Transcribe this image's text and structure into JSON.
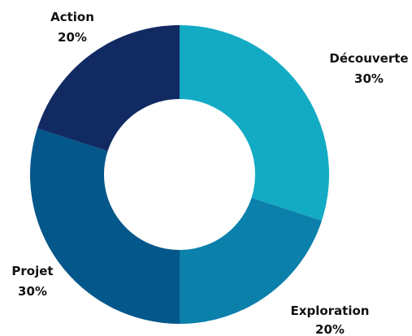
{
  "chart_data": {
    "type": "pie",
    "variant": "donut",
    "title": "",
    "legend": "none",
    "slices": [
      {
        "label": "Découverte",
        "value": 30,
        "value_label": "30%",
        "color": "#13abc4"
      },
      {
        "label": "Exploration",
        "value": 20,
        "value_label": "20%",
        "color": "#0a80aa"
      },
      {
        "label": "Projet",
        "value": 30,
        "value_label": "30%",
        "color": "#04578a"
      },
      {
        "label": "Action",
        "value": 20,
        "value_label": "20%",
        "color": "#112a62"
      }
    ]
  }
}
